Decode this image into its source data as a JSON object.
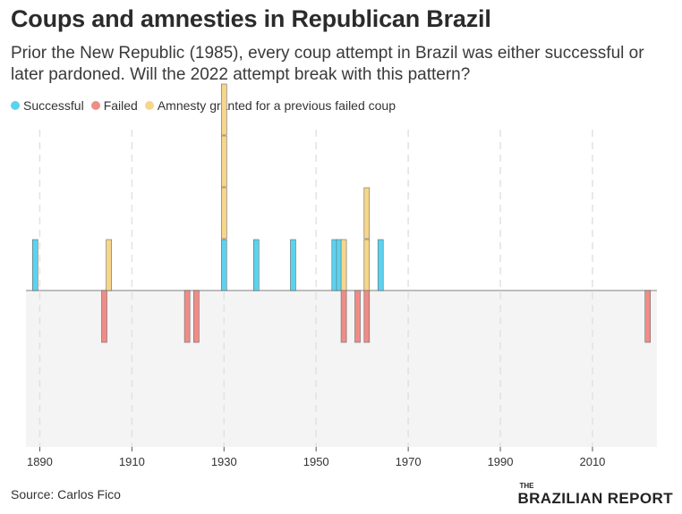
{
  "header": {
    "title": "Coups and amnesties in Republican Brazil",
    "subtitle": "Prior the New Republic (1985), every coup attempt in Brazil was either successful or later pardoned. Will the 2022 attempt break with this pattern?"
  },
  "legend": [
    {
      "label": "Successful",
      "color": "#5bd3ef"
    },
    {
      "label": "Failed",
      "color": "#f08c87"
    },
    {
      "label": "Amnesty granted for a previous failed coup",
      "color": "#f7d68a"
    }
  ],
  "footer": {
    "source": "Source: Carlos Fico",
    "logo_small": "THE",
    "logo_main": "BRAZILIAN REPORT"
  },
  "chart_data": {
    "type": "bar",
    "xlabel": "",
    "ylabel": "",
    "x_ticks": [
      "1890",
      "1910",
      "1930",
      "1950",
      "1970",
      "1990",
      "2010"
    ],
    "xlim": [
      1887,
      2024
    ],
    "grid": true,
    "legend_position": "top-left",
    "colors": {
      "Successful": "#5bd3ef",
      "Failed": "#f08c87",
      "Amnesty": "#f7d68a"
    },
    "series": [
      {
        "name": "Successful",
        "x": [
          1889,
          1930,
          1937,
          1945,
          1954,
          1955,
          1964
        ]
      },
      {
        "name": "Failed",
        "x": [
          1904,
          1922,
          1924,
          1956,
          1959,
          1961,
          2022
        ]
      },
      {
        "name": "Amnesty granted for a previous failed coup",
        "x": [
          1905,
          1930,
          1930,
          1930,
          1956,
          1961,
          1961
        ]
      }
    ]
  }
}
